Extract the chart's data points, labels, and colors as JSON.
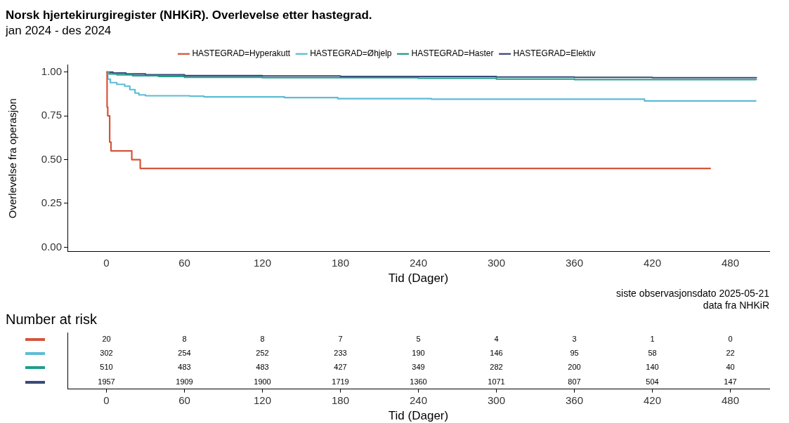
{
  "chart_data": [
    {
      "type": "step",
      "title": "Norsk hjertekirurgiregister (NHKiR). Overlevelse etter hastegrad.",
      "subtitle": "jan 2024 - des 2024",
      "xlabel": "Tid (Dager)",
      "ylabel": "Overlevelse fra operasjon",
      "legend": "top",
      "grid": false,
      "xlim": [
        -30,
        510
      ],
      "ylim": [
        -0.025,
        1.04
      ],
      "xticks": [
        0,
        60,
        120,
        180,
        240,
        300,
        360,
        420,
        480
      ],
      "yticks": [
        {
          "value": 0,
          "label": "0.00"
        },
        {
          "value": 0.25,
          "label": "0.25"
        },
        {
          "value": 0.5,
          "label": "0.50"
        },
        {
          "value": 0.75,
          "label": "0.75"
        },
        {
          "value": 1,
          "label": "1.00"
        }
      ],
      "series": [
        {
          "name": "HASTEGRAD=Hyperakutt",
          "color": "#d4553a",
          "x": [
            0,
            0.5,
            1,
            2.5,
            3.5,
            19.5,
            26,
            465
          ],
          "values": [
            1,
            0.8,
            0.75,
            0.6,
            0.55,
            0.5,
            0.45,
            0.45
          ]
        },
        {
          "name": "HASTEGRAD=Øhjelp",
          "color": "#5bbcd6",
          "x": [
            0,
            1,
            3,
            8,
            14,
            18,
            22,
            25,
            30,
            64,
            75,
            137,
            178,
            250,
            414,
            500
          ],
          "values": [
            1,
            0.96,
            0.94,
            0.93,
            0.92,
            0.9,
            0.88,
            0.87,
            0.865,
            0.863,
            0.858,
            0.854,
            0.848,
            0.845,
            0.835,
            0.835
          ]
        },
        {
          "name": "HASTEGRAD=Haster",
          "color": "#1f9e89",
          "x": [
            0,
            2,
            8,
            20,
            40,
            60,
            120,
            240,
            300,
            360,
            500
          ],
          "values": [
            1,
            0.99,
            0.985,
            0.98,
            0.975,
            0.97,
            0.968,
            0.965,
            0.96,
            0.957,
            0.955
          ]
        },
        {
          "name": "HASTEGRAD=Elektiv",
          "color": "#3b4a7a",
          "x": [
            0,
            5,
            15,
            30,
            60,
            120,
            180,
            300,
            360,
            420,
            500
          ],
          "values": [
            1,
            0.995,
            0.99,
            0.985,
            0.98,
            0.978,
            0.975,
            0.972,
            0.97,
            0.968,
            0.965
          ]
        }
      ],
      "annotations": [
        "siste observasjonsdato 2025-05-21",
        "data fra NHKiR"
      ]
    },
    {
      "type": "heatmap",
      "title": "Number at risk",
      "xlabel": "Tid (Dager)",
      "data_labels": true,
      "categories": [
        "0",
        "60",
        "120",
        "180",
        "240",
        "300",
        "360",
        "420",
        "480"
      ],
      "y_categories": [
        null,
        null,
        null,
        null
      ],
      "colors": [
        "#d4553a",
        "#5bbcd6",
        "#1f9e89",
        "#3b4a7a"
      ],
      "cells": [
        [
          20,
          8,
          8,
          7,
          5,
          4,
          3,
          1,
          0
        ],
        [
          302,
          254,
          252,
          233,
          190,
          146,
          95,
          58,
          22
        ],
        [
          510,
          483,
          483,
          427,
          349,
          282,
          200,
          140,
          40
        ],
        [
          1957,
          1909,
          1900,
          1719,
          1360,
          1071,
          807,
          504,
          147
        ]
      ]
    }
  ]
}
